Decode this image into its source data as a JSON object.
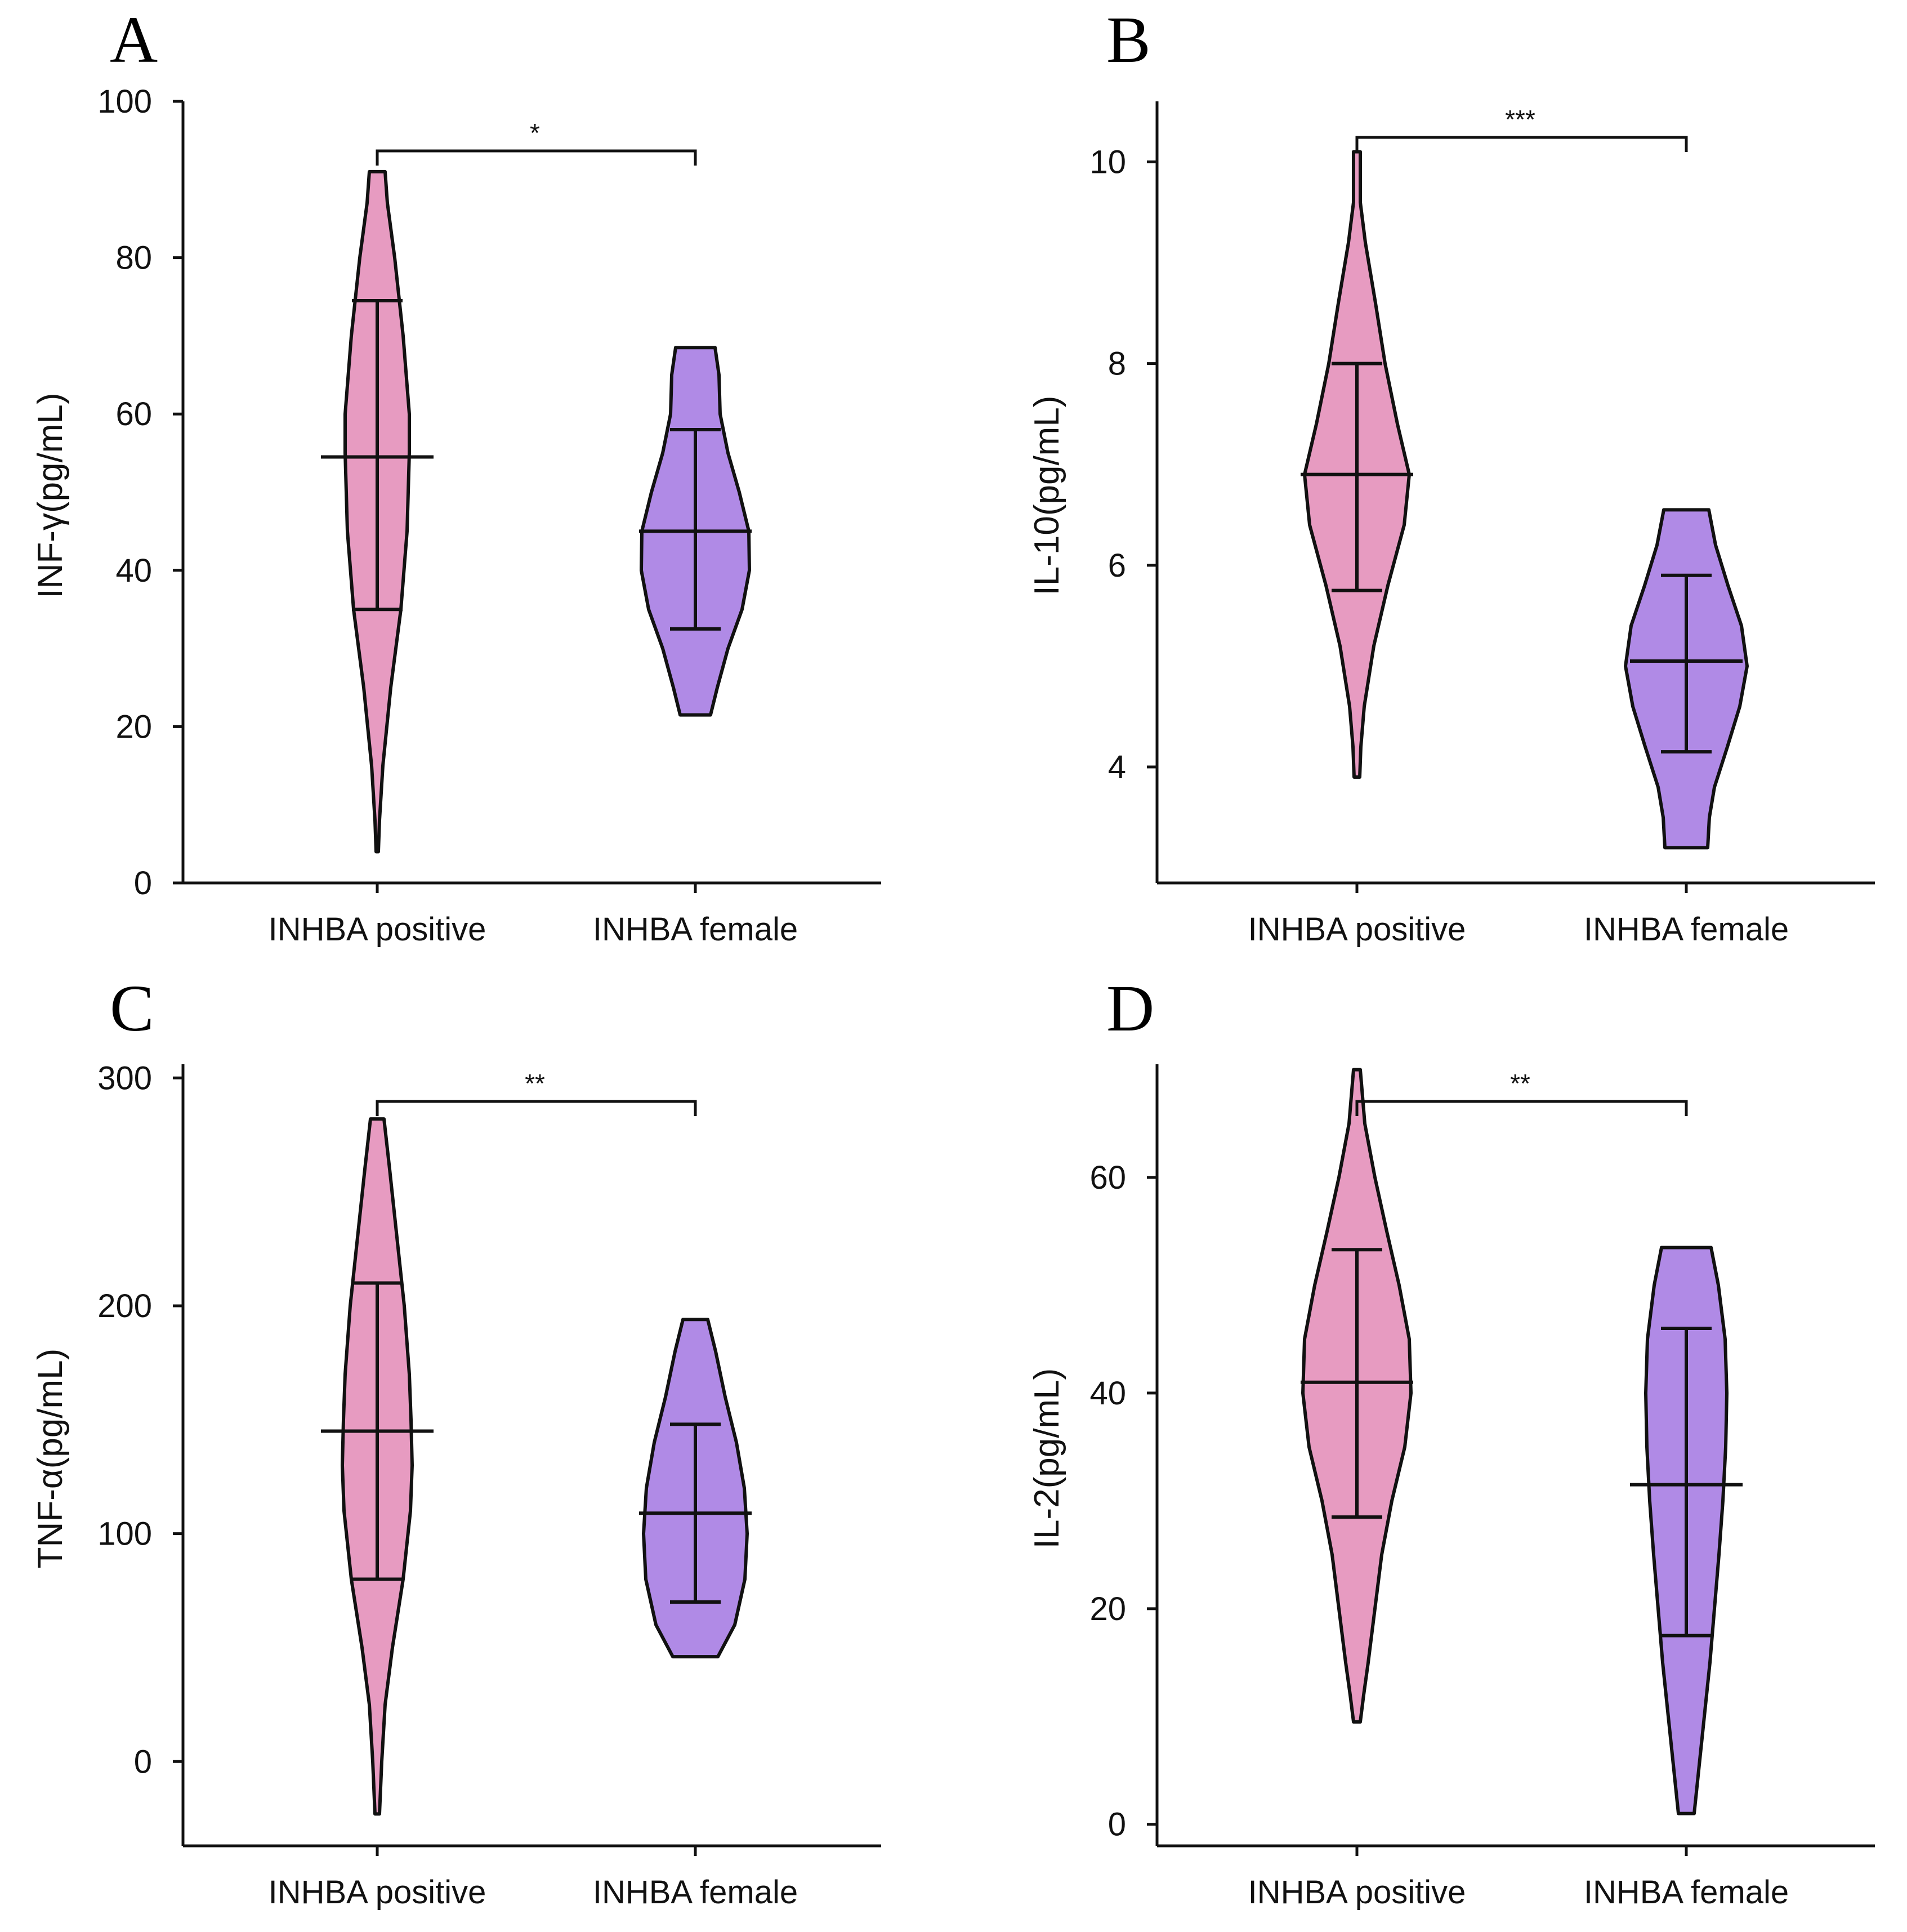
{
  "figure": {
    "colors": {
      "positive_fill": "#e79bc1",
      "female_fill": "#b08ae6",
      "ink": "#111111"
    }
  },
  "chart_data": [
    {
      "panel": "A",
      "type": "violin",
      "ylabel": "INF-γ(pg/mL)",
      "categories": [
        "INHBA positive",
        "INHBA female"
      ],
      "ylim": [
        0,
        100
      ],
      "yticks": [
        0,
        20,
        40,
        60,
        80,
        100
      ],
      "ytick_labels": [
        "0",
        "20",
        "40",
        "60",
        "80",
        "100"
      ],
      "significance": "*",
      "groups": [
        {
          "name": "INHBA positive",
          "min": 4,
          "max": 91,
          "mean": 54.5,
          "err_low": 35,
          "err_high": 74.5,
          "profile": [
            [
              4,
              2
            ],
            [
              8,
              4
            ],
            [
              15,
              10
            ],
            [
              25,
              24
            ],
            [
              35,
              42
            ],
            [
              45,
              53
            ],
            [
              55,
              57
            ],
            [
              60,
              57
            ],
            [
              70,
              46
            ],
            [
              80,
              31
            ],
            [
              87,
              18
            ],
            [
              91,
              14
            ]
          ]
        },
        {
          "name": "INHBA female",
          "min": 21.5,
          "max": 68.5,
          "mean": 45,
          "err_low": 32.5,
          "err_high": 58,
          "profile": [
            [
              21.5,
              27
            ],
            [
              25,
              39
            ],
            [
              30,
              58
            ],
            [
              35,
              83
            ],
            [
              40,
              96
            ],
            [
              45,
              95
            ],
            [
              50,
              78
            ],
            [
              55,
              58
            ],
            [
              60,
              44
            ],
            [
              65,
              42
            ],
            [
              68.5,
              35
            ]
          ]
        }
      ]
    },
    {
      "panel": "B",
      "type": "violin",
      "ylabel": "IL-10(pg/mL)",
      "categories": [
        "INHBA positive",
        "INHBA female"
      ],
      "ylim": [
        2.85,
        10.6
      ],
      "yticks": [
        4,
        6,
        8,
        10
      ],
      "ytick_labels": [
        "4",
        "6",
        "8",
        "10"
      ],
      "significance": "***",
      "groups": [
        {
          "name": "INHBA positive",
          "min": 3.9,
          "max": 10.1,
          "mean": 6.9,
          "err_low": 5.75,
          "err_high": 8.0,
          "profile": [
            [
              3.9,
              5
            ],
            [
              4.2,
              7
            ],
            [
              4.6,
              13
            ],
            [
              5.2,
              30
            ],
            [
              5.8,
              55
            ],
            [
              6.4,
              84
            ],
            [
              6.9,
              93
            ],
            [
              7.4,
              72
            ],
            [
              8.0,
              50
            ],
            [
              8.6,
              33
            ],
            [
              9.2,
              15
            ],
            [
              9.6,
              6
            ],
            [
              10.1,
              6
            ]
          ]
        },
        {
          "name": "INHBA female",
          "min": 3.2,
          "max": 6.55,
          "mean": 5.05,
          "err_low": 4.15,
          "err_high": 5.9,
          "profile": [
            [
              3.2,
              38
            ],
            [
              3.5,
              41
            ],
            [
              3.8,
              50
            ],
            [
              4.2,
              73
            ],
            [
              4.6,
              95
            ],
            [
              5.0,
              108
            ],
            [
              5.4,
              98
            ],
            [
              5.8,
              74
            ],
            [
              6.2,
              52
            ],
            [
              6.55,
              40
            ]
          ]
        }
      ]
    },
    {
      "panel": "C",
      "type": "violin",
      "ylabel": "TNF-α(pg/mL)",
      "categories": [
        "INHBA positive",
        "INHBA female"
      ],
      "ylim": [
        -37,
        306
      ],
      "yticks": [
        0,
        100,
        200,
        300
      ],
      "ytick_labels": [
        "0",
        "100",
        "200",
        "300"
      ],
      "significance": "**",
      "groups": [
        {
          "name": "INHBA positive",
          "min": -23,
          "max": 282,
          "mean": 145,
          "err_low": 80,
          "err_high": 210,
          "profile": [
            [
              -23,
              4
            ],
            [
              0,
              8
            ],
            [
              25,
              14
            ],
            [
              50,
              27
            ],
            [
              80,
              46
            ],
            [
              110,
              59
            ],
            [
              130,
              62
            ],
            [
              150,
              60
            ],
            [
              170,
              57
            ],
            [
              200,
              48
            ],
            [
              230,
              35
            ],
            [
              260,
              22
            ],
            [
              282,
              12
            ]
          ]
        },
        {
          "name": "INHBA female",
          "min": 46,
          "max": 194,
          "mean": 109,
          "err_low": 70,
          "err_high": 148,
          "profile": [
            [
              46,
              40
            ],
            [
              60,
              70
            ],
            [
              80,
              88
            ],
            [
              100,
              92
            ],
            [
              120,
              87
            ],
            [
              140,
              73
            ],
            [
              160,
              53
            ],
            [
              180,
              36
            ],
            [
              194,
              22
            ]
          ]
        }
      ]
    },
    {
      "panel": "D",
      "type": "violin",
      "ylabel": "IL-2(pg/mL)",
      "categories": [
        "INHBA positive",
        "INHBA female"
      ],
      "ylim": [
        -2,
        70.5
      ],
      "yticks": [
        0,
        20,
        40,
        60
      ],
      "ytick_labels": [
        "0",
        "20",
        "40",
        "60"
      ],
      "significance": "**",
      "groups": [
        {
          "name": "INHBA positive",
          "min": 9.5,
          "max": 70,
          "mean": 41,
          "err_low": 28.5,
          "err_high": 53.3,
          "profile": [
            [
              9.5,
              6
            ],
            [
              12,
              12
            ],
            [
              15,
              20
            ],
            [
              20,
              32
            ],
            [
              25,
              44
            ],
            [
              30,
              62
            ],
            [
              35,
              85
            ],
            [
              40,
              96
            ],
            [
              45,
              93
            ],
            [
              50,
              75
            ],
            [
              55,
              53
            ],
            [
              60,
              32
            ],
            [
              65,
              14
            ],
            [
              70,
              6
            ]
          ]
        },
        {
          "name": "INHBA female",
          "min": 1,
          "max": 53.5,
          "mean": 31.5,
          "err_low": 17.5,
          "err_high": 46,
          "profile": [
            [
              1,
              14
            ],
            [
              5,
              22
            ],
            [
              10,
              32
            ],
            [
              15,
              42
            ],
            [
              20,
              50
            ],
            [
              25,
              58
            ],
            [
              30,
              65
            ],
            [
              35,
              70
            ],
            [
              40,
              72
            ],
            [
              45,
              69
            ],
            [
              50,
              57
            ],
            [
              53.5,
              44
            ]
          ]
        }
      ]
    }
  ]
}
